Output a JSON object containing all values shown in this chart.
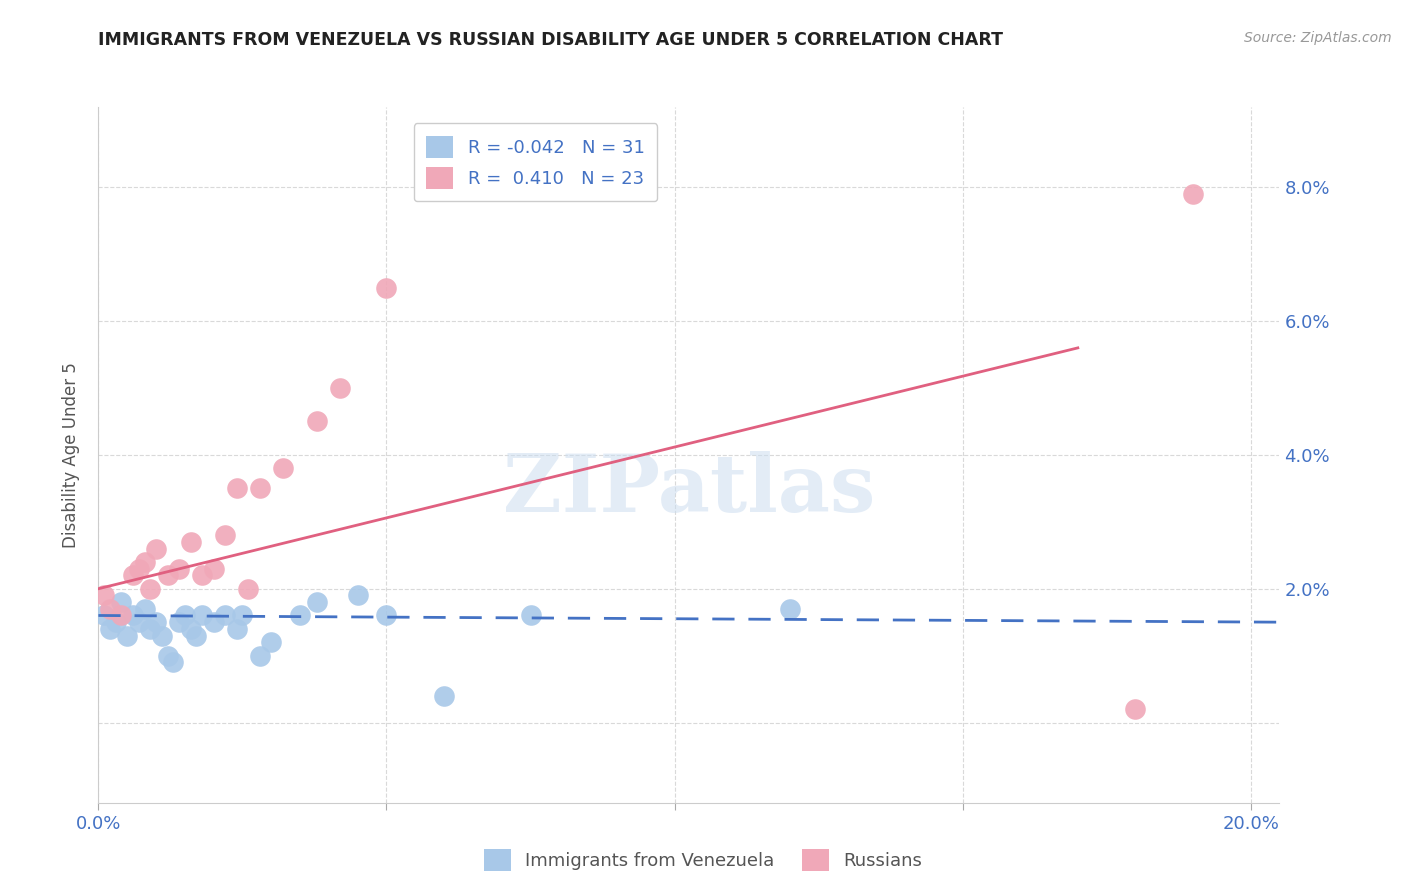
{
  "title": "IMMIGRANTS FROM VENEZUELA VS RUSSIAN DISABILITY AGE UNDER 5 CORRELATION CHART",
  "source": "Source: ZipAtlas.com",
  "ylabel": "Disability Age Under 5",
  "watermark": "ZIPatlas",
  "xlim": [
    0.0,
    0.205
  ],
  "ylim": [
    -0.012,
    0.092
  ],
  "xticks": [
    0.0,
    0.05,
    0.1,
    0.15,
    0.2
  ],
  "xticklabels": [
    "0.0%",
    "",
    "",
    "",
    "20.0%"
  ],
  "yticks": [
    0.0,
    0.02,
    0.04,
    0.06,
    0.08
  ],
  "yticklabels": [
    "",
    "2.0%",
    "4.0%",
    "6.0%",
    "8.0%"
  ],
  "blue_R": "-0.042",
  "blue_N": "31",
  "pink_R": "0.410",
  "pink_N": "23",
  "blue_color": "#a8c8e8",
  "pink_color": "#f0a8b8",
  "blue_line_color": "#4472c4",
  "pink_line_color": "#e06080",
  "grid_color": "#d0d0d0",
  "title_color": "#222222",
  "axis_label_color": "#4472c4",
  "blue_points_x": [
    0.001,
    0.002,
    0.003,
    0.004,
    0.005,
    0.006,
    0.007,
    0.008,
    0.009,
    0.01,
    0.011,
    0.012,
    0.013,
    0.014,
    0.015,
    0.016,
    0.017,
    0.018,
    0.02,
    0.022,
    0.024,
    0.025,
    0.028,
    0.03,
    0.035,
    0.038,
    0.045,
    0.05,
    0.06,
    0.075,
    0.12
  ],
  "blue_points_y": [
    0.016,
    0.014,
    0.015,
    0.018,
    0.013,
    0.016,
    0.015,
    0.017,
    0.014,
    0.015,
    0.013,
    0.01,
    0.009,
    0.015,
    0.016,
    0.014,
    0.013,
    0.016,
    0.015,
    0.016,
    0.014,
    0.016,
    0.01,
    0.012,
    0.016,
    0.018,
    0.019,
    0.016,
    0.004,
    0.016,
    0.017
  ],
  "pink_points_x": [
    0.001,
    0.002,
    0.004,
    0.006,
    0.007,
    0.008,
    0.009,
    0.01,
    0.012,
    0.014,
    0.016,
    0.018,
    0.02,
    0.022,
    0.024,
    0.026,
    0.028,
    0.032,
    0.038,
    0.042,
    0.05,
    0.18,
    0.19
  ],
  "pink_points_y": [
    0.019,
    0.017,
    0.016,
    0.022,
    0.023,
    0.024,
    0.02,
    0.026,
    0.022,
    0.023,
    0.027,
    0.022,
    0.023,
    0.028,
    0.035,
    0.02,
    0.035,
    0.038,
    0.045,
    0.05,
    0.065,
    0.002,
    0.079
  ],
  "blue_line_x": [
    0.0,
    0.205
  ],
  "blue_line_y": [
    0.016,
    0.015
  ],
  "pink_line_x": [
    0.0,
    0.17
  ],
  "pink_line_y": [
    0.02,
    0.056
  ]
}
